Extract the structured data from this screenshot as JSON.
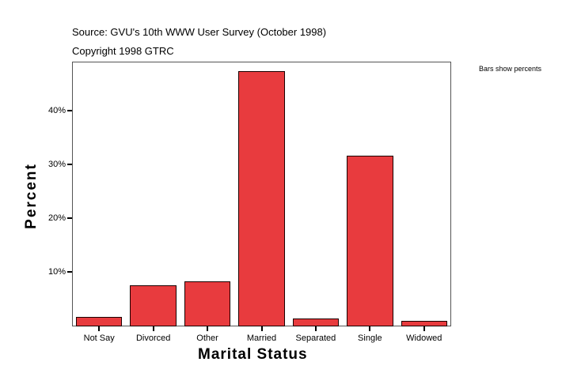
{
  "header": {
    "source": "Source: GVU's 10th WWW User Survey (October 1998)",
    "copyright": "Copyright 1998 GTRC",
    "note": "Bars show percents"
  },
  "chart_data": {
    "type": "bar",
    "title": "Source: GVU's 10th WWW User Survey (October 1998)",
    "subtitle": "Copyright 1998 GTRC",
    "annotation": "Bars show percents",
    "xlabel": "Marital Status",
    "ylabel": "Percent",
    "categories": [
      "Not Say",
      "Divorced",
      "Other",
      "Married",
      "Separated",
      "Single",
      "Widowed"
    ],
    "values": [
      1.8,
      7.6,
      8.4,
      47.5,
      1.5,
      31.8,
      1.0
    ],
    "yticks": [
      "10%",
      "20%",
      "30%",
      "40%"
    ],
    "ylim": [
      0,
      49
    ],
    "grid": false,
    "bar_color": "#e83b3e"
  }
}
